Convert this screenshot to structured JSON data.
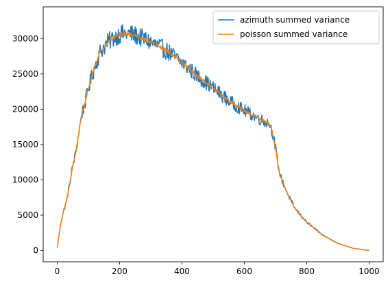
{
  "chart_data": {
    "type": "line",
    "title": "",
    "xlabel": "",
    "ylabel": "",
    "xlim": [
      -45,
      1045
    ],
    "ylim": [
      -1600,
      34500
    ],
    "x_ticks": [
      0,
      200,
      400,
      600,
      800,
      1000
    ],
    "y_ticks": [
      0,
      5000,
      10000,
      15000,
      20000,
      25000,
      30000
    ],
    "grid": false,
    "legend_position": "top-right",
    "series": [
      {
        "name": "azimuth summed variance",
        "color": "#1f77b4",
        "line_width": 1.5,
        "noise": 0.045,
        "x": [
          0,
          10,
          20,
          30,
          40,
          50,
          60,
          70,
          80,
          90,
          100,
          120,
          140,
          160,
          180,
          200,
          220,
          240,
          260,
          280,
          300,
          350,
          400,
          450,
          500,
          550,
          600,
          650,
          680,
          690,
          700,
          710,
          720,
          740,
          760,
          780,
          800,
          850,
          900,
          950,
          1000
        ],
        "y": [
          400,
          3500,
          5500,
          7000,
          9500,
          12000,
          14000,
          17000,
          19500,
          21000,
          23000,
          26000,
          28300,
          29400,
          30100,
          30600,
          30700,
          30600,
          30300,
          29900,
          29500,
          28300,
          26600,
          24700,
          23000,
          21200,
          19800,
          18600,
          18000,
          16800,
          14500,
          11500,
          10000,
          7900,
          6100,
          5000,
          4000,
          2200,
          1000,
          300,
          0
        ]
      },
      {
        "name": "poisson summed variance",
        "color": "#ff7f0e",
        "line_width": 1.5,
        "noise": 0.01,
        "x": [
          0,
          10,
          20,
          30,
          40,
          50,
          60,
          70,
          80,
          90,
          100,
          120,
          140,
          160,
          180,
          200,
          220,
          240,
          260,
          280,
          300,
          350,
          400,
          450,
          500,
          550,
          600,
          650,
          680,
          690,
          700,
          710,
          720,
          740,
          760,
          780,
          800,
          850,
          900,
          950,
          1000
        ],
        "y": [
          400,
          3500,
          5500,
          7000,
          9500,
          12000,
          14000,
          17000,
          19500,
          21000,
          23000,
          26000,
          28300,
          29400,
          30100,
          30600,
          30700,
          30600,
          30300,
          29900,
          29500,
          28300,
          26600,
          24700,
          23000,
          21200,
          19800,
          18600,
          18000,
          16800,
          14500,
          11500,
          10000,
          7900,
          6100,
          5000,
          4000,
          2200,
          1000,
          300,
          0
        ]
      }
    ]
  }
}
